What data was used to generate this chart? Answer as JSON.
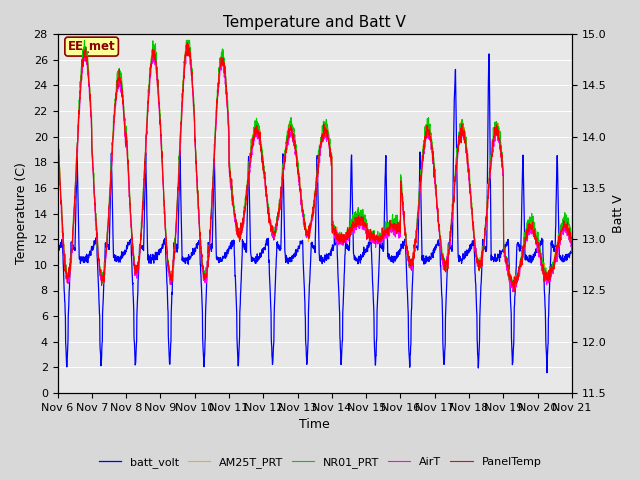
{
  "title": "Temperature and Batt V",
  "xlabel": "Time",
  "ylabel_left": "Temperature (C)",
  "ylabel_right": "Batt V",
  "ylim_left": [
    0,
    28
  ],
  "ylim_right": [
    11.5,
    15.0
  ],
  "yticks_left": [
    0,
    2,
    4,
    6,
    8,
    10,
    12,
    14,
    16,
    18,
    20,
    22,
    24,
    26,
    28
  ],
  "yticks_right": [
    11.5,
    12.0,
    12.5,
    13.0,
    13.5,
    14.0,
    14.5,
    15.0
  ],
  "xtick_labels": [
    "Nov 6",
    "Nov 7",
    "Nov 8",
    "Nov 9",
    "Nov 10",
    "Nov 11",
    "Nov 12",
    "Nov 13",
    "Nov 14",
    "Nov 15",
    "Nov 16",
    "Nov 17",
    "Nov 18",
    "Nov 19",
    "Nov 20",
    "Nov 21"
  ],
  "watermark": "EE_met",
  "series_colors": {
    "PanelTemp": "#ff0000",
    "AirT": "#ff00ff",
    "NR01_PRT": "#00cc00",
    "AM25T_PRT": "#ffaa00",
    "batt_volt": "#0000ff"
  },
  "line_widths": {
    "PanelTemp": 0.8,
    "AirT": 0.8,
    "NR01_PRT": 0.8,
    "AM25T_PRT": 0.8,
    "batt_volt": 0.9
  },
  "background_color": "#d8d8d8",
  "plot_bg_color": "#e8e8e8",
  "grid_color": "#ffffff",
  "title_fontsize": 11,
  "label_fontsize": 9,
  "tick_fontsize": 8
}
